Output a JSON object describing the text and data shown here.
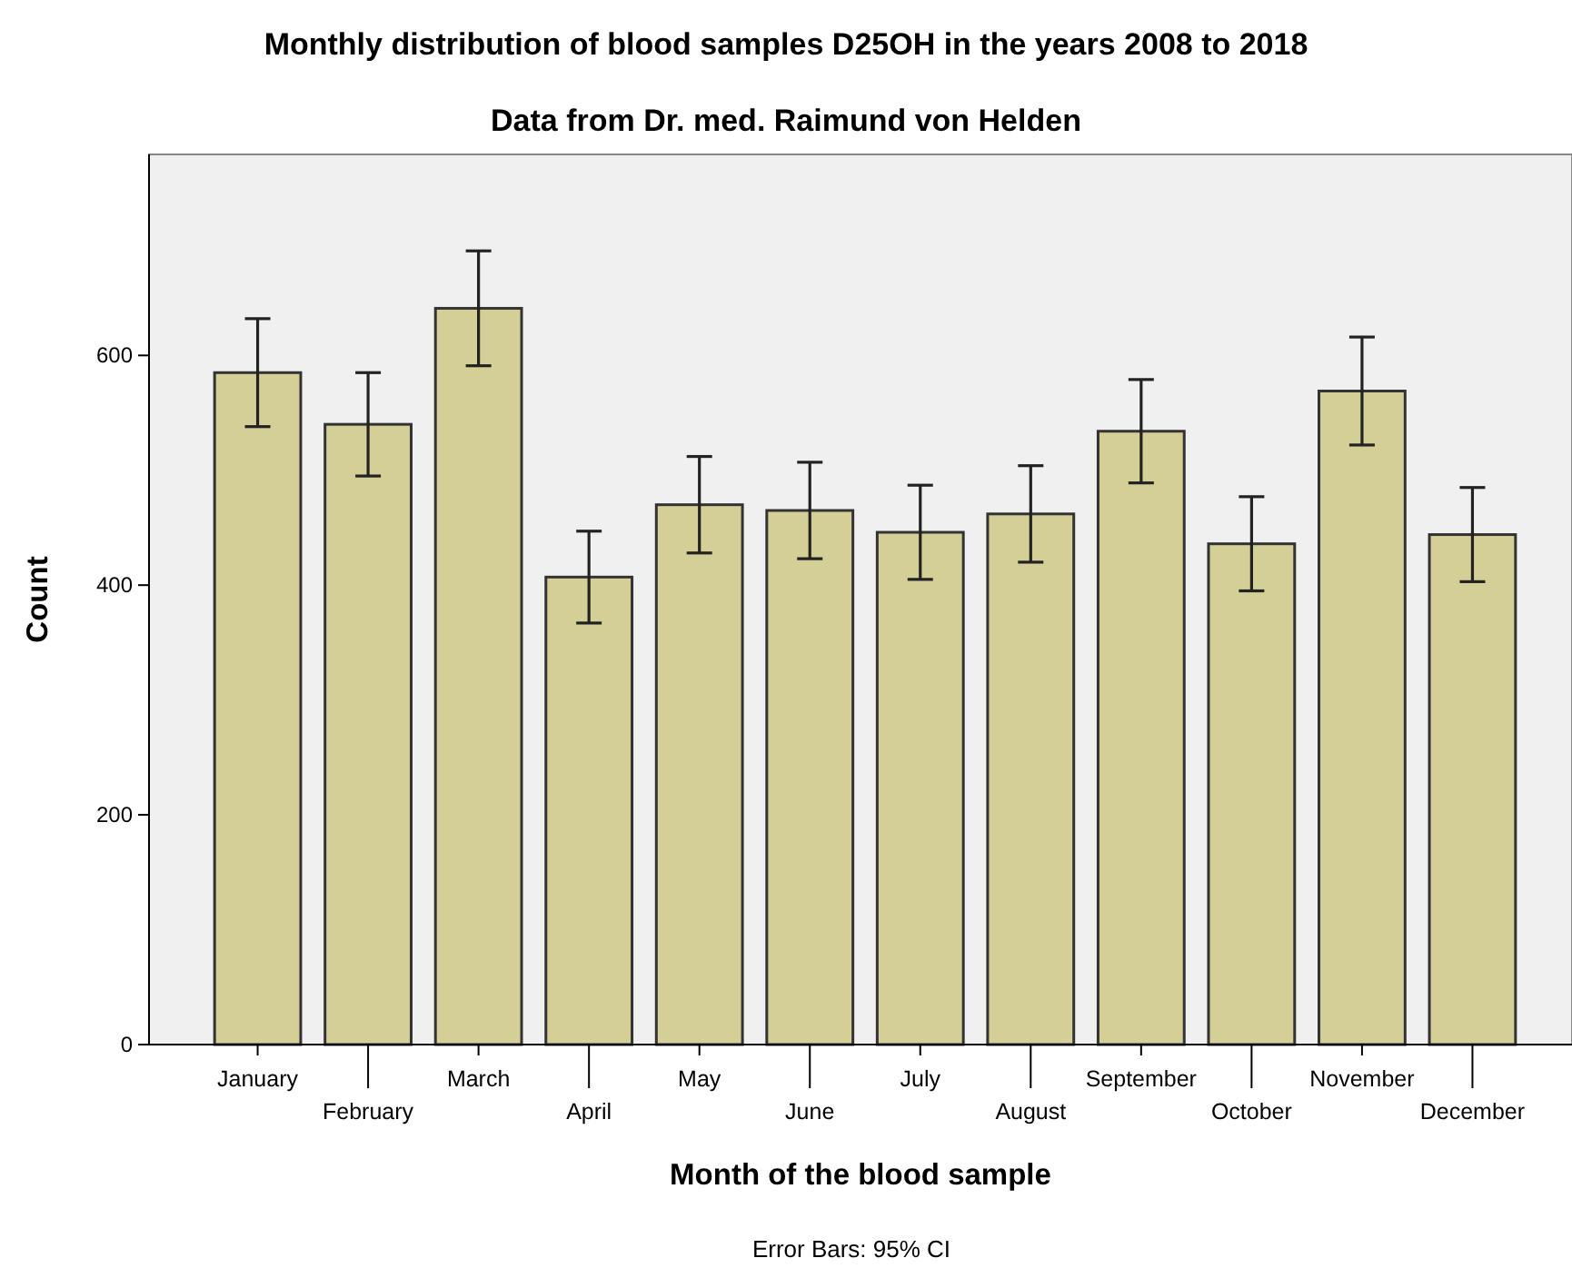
{
  "chart_data": {
    "type": "bar",
    "title": "Monthly distribution of blood samples D25OH in the years 2008 to 2018",
    "subtitle": "Data from Dr. med. Raimund von Helden",
    "xlabel": "Month of the blood sample",
    "ylabel": "Count",
    "categories": [
      "January",
      "February",
      "March",
      "April",
      "May",
      "June",
      "July",
      "August",
      "September",
      "October",
      "November",
      "December"
    ],
    "values": [
      585,
      540,
      641,
      407,
      470,
      465,
      446,
      462,
      534,
      436,
      569,
      444
    ],
    "errors": [
      47,
      45,
      50,
      40,
      42,
      42,
      41,
      42,
      45,
      41,
      47,
      41
    ],
    "color": "#d3cf96",
    "ylim": [
      0,
      775
    ],
    "yticks": [
      0,
      200,
      400,
      600
    ],
    "grid": false,
    "annotations": [
      "Error Bars: 95% CI"
    ]
  }
}
